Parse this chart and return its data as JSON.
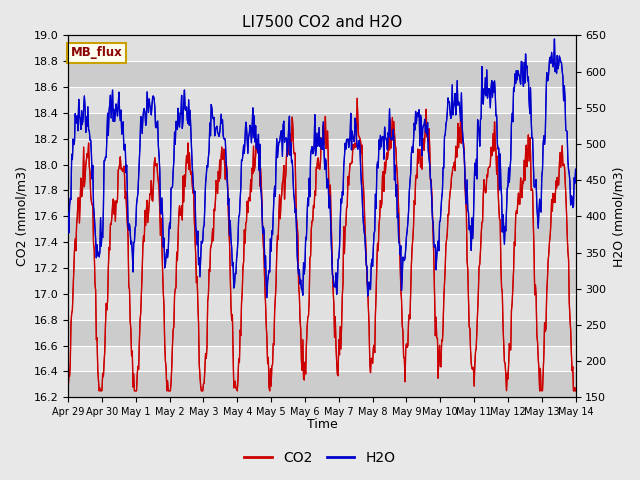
{
  "title": "LI7500 CO2 and H2O",
  "xlabel": "Time",
  "ylabel_left": "CO2 (mmol/m3)",
  "ylabel_right": "H2O (mmol/m3)",
  "ylim_left": [
    16.2,
    19.0
  ],
  "ylim_right": [
    150,
    650
  ],
  "yticks_left": [
    16.2,
    16.4,
    16.6,
    16.8,
    17.0,
    17.2,
    17.4,
    17.6,
    17.8,
    18.0,
    18.2,
    18.4,
    18.6,
    18.8,
    19.0
  ],
  "yticks_right": [
    150,
    200,
    250,
    300,
    350,
    400,
    450,
    500,
    550,
    600,
    650
  ],
  "co2_color": "#cc0000",
  "h2o_color": "#0000cc",
  "fig_facecolor": "#e8e8e8",
  "plot_facecolor": "#d8d8d8",
  "grid_color": "#ffffff",
  "annotation_text": "MB_flux",
  "annotation_facecolor": "#fffff0",
  "annotation_edgecolor": "#c8a000",
  "annotation_textcolor": "#8b0000",
  "x_tick_labels": [
    "Apr 29",
    "Apr 30",
    "May 1",
    "May 2",
    "May 3",
    "May 4",
    "May 5",
    "May 6",
    "May 7",
    "May 8",
    "May 9",
    "May 10",
    "May 11",
    "May 12",
    "May 13",
    "May 14"
  ],
  "legend_co2": "CO2",
  "legend_h2o": "H2O"
}
